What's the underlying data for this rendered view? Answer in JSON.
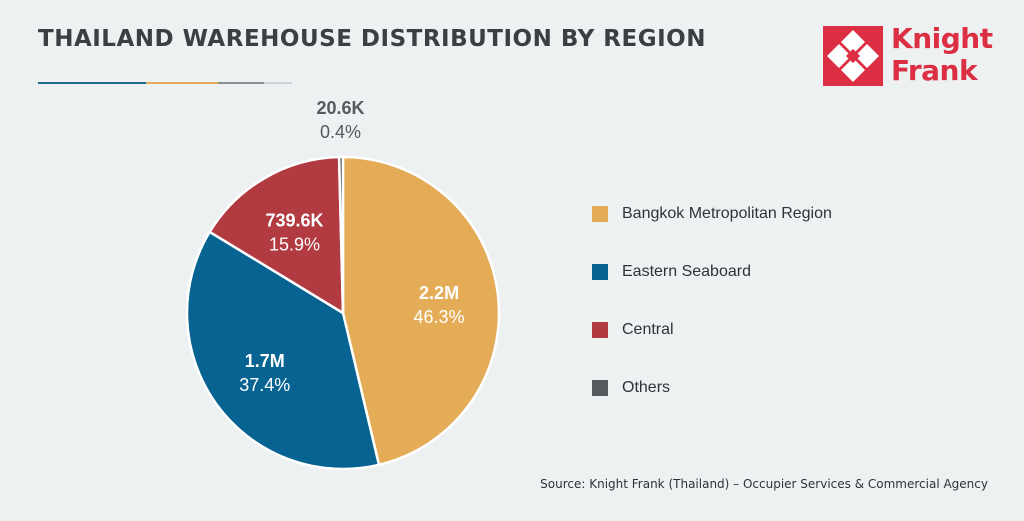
{
  "header": {
    "title": "THAILAND WAREHOUSE DISTRIBUTION BY REGION",
    "rule_colors": [
      "#1f6a92",
      "#e5ac57",
      "#8a8f94",
      "#cfd3d6"
    ]
  },
  "logo": {
    "line1": "Knight",
    "line2": "Frank",
    "color": "#dc2f43"
  },
  "chart_data": {
    "type": "pie",
    "title": "THAILAND WAREHOUSE DISTRIBUTION BY REGION",
    "slices": [
      {
        "name": "Bangkok Metropolitan Region",
        "value_label": "2.2M",
        "percent": 46.3,
        "percent_label": "46.3%",
        "color": "#e5ac57"
      },
      {
        "name": "Eastern Seaboard",
        "value_label": "1.7M",
        "percent": 37.4,
        "percent_label": "37.4%",
        "color": "#076391"
      },
      {
        "name": "Central",
        "value_label": "739.6K",
        "percent": 15.9,
        "percent_label": "15.9%",
        "color": "#b23a41"
      },
      {
        "name": "Others",
        "value_label": "20.6K",
        "percent": 0.4,
        "percent_label": "0.4%",
        "color": "#555a5f"
      }
    ],
    "legend_position": "right"
  },
  "source": "Source: Knight Frank (Thailand) – Occupier Services & Commercial Agency"
}
